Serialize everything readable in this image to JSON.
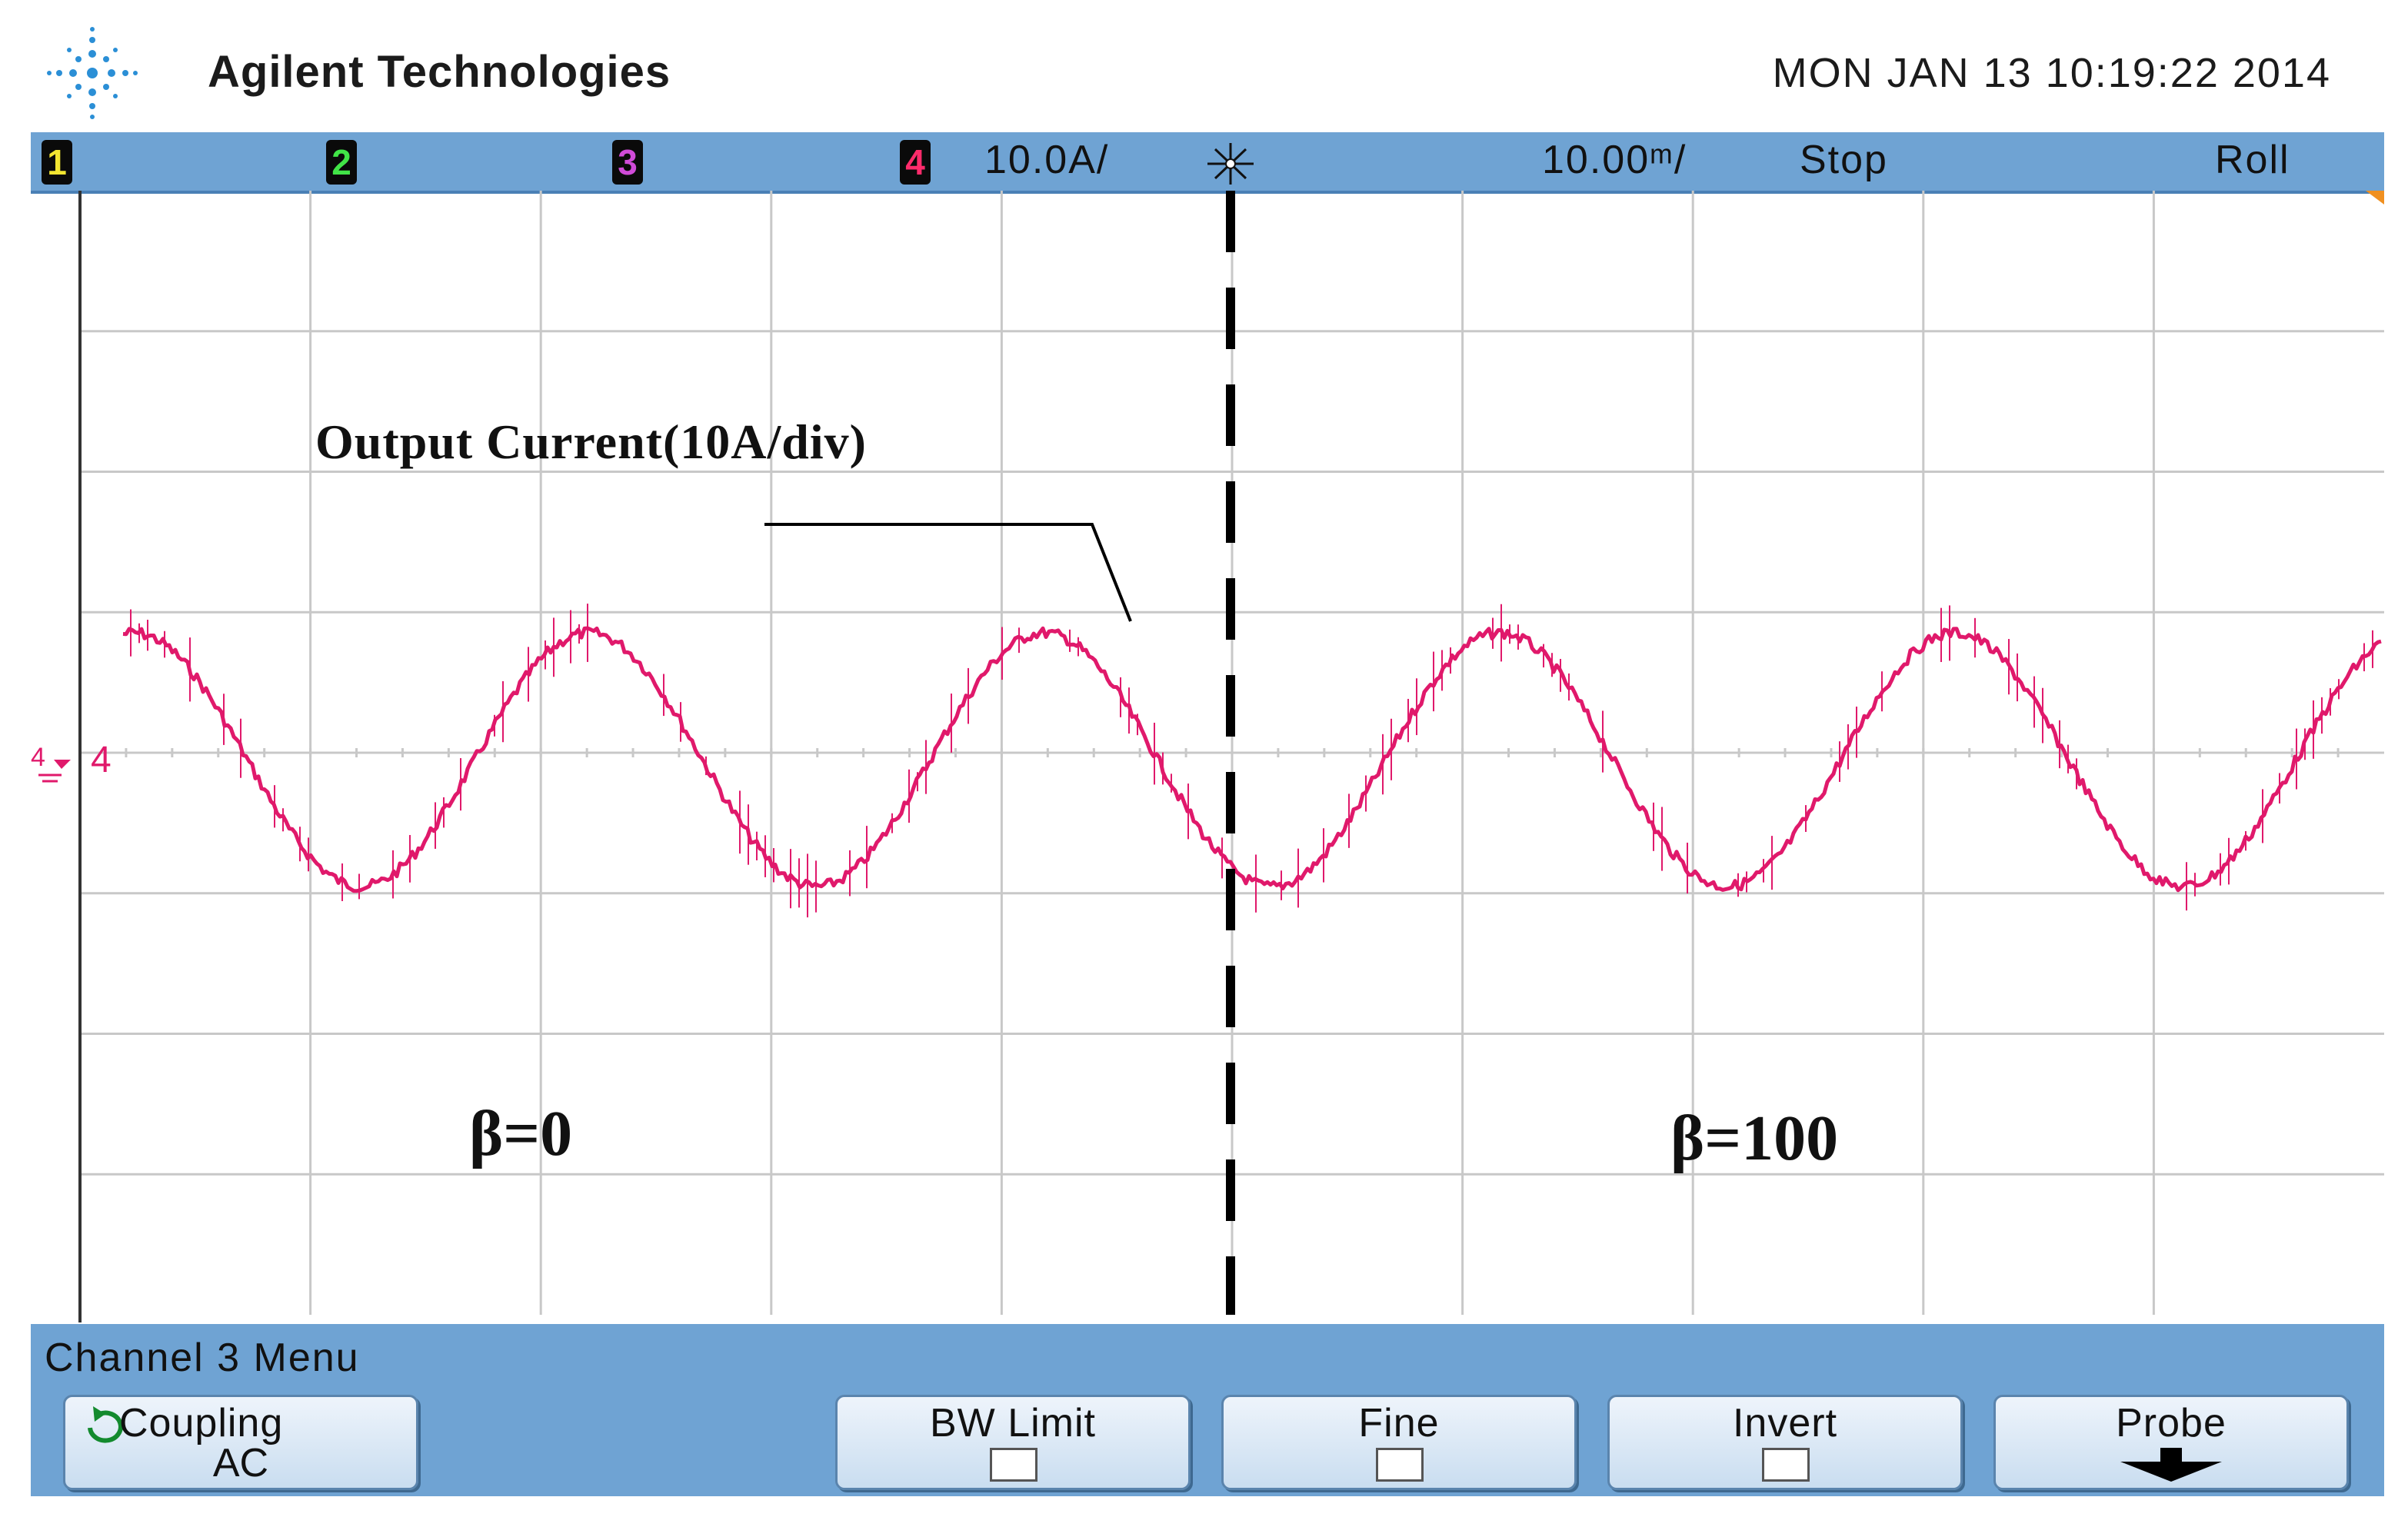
{
  "header": {
    "brand": "Agilent Technologies",
    "datetime": "MON JAN 13 10:19:22 2014",
    "logo_icon": "agilent-spark-logo-icon"
  },
  "status_bar": {
    "channels": [
      {
        "label": "1",
        "color": "#f2e531"
      },
      {
        "label": "2",
        "color": "#41e447"
      },
      {
        "label": "3",
        "color": "#d04bd8"
      },
      {
        "label": "4",
        "color": "#ff2b6b"
      }
    ],
    "channel4_scale": "10.0A/",
    "trigger_icon": "trigger-position-icon",
    "timebase": "10.00ᵐ/",
    "run_state": "Stop",
    "mode": "Roll"
  },
  "screen": {
    "background": "#ffffff",
    "grid_color": "#c8c8c8",
    "trace_color": "#e0196b",
    "ground_marker": "4",
    "divider_style": "dashed"
  },
  "annotations": {
    "output_current": "Output Current(10A/div)",
    "beta_left": "β=0",
    "beta_right": "β=100"
  },
  "menu": {
    "title": "Channel 3  Menu",
    "softkeys": {
      "coupling": {
        "label": "Coupling",
        "value": "AC",
        "icon": "coupling-cycle-icon"
      },
      "bw_limit": {
        "label": "BW Limit",
        "checked": false
      },
      "fine": {
        "label": "Fine",
        "checked": false
      },
      "invert": {
        "label": "Invert",
        "checked": false
      },
      "probe": {
        "label": "Probe",
        "icon": "submenu-arrow-icon"
      }
    }
  }
}
